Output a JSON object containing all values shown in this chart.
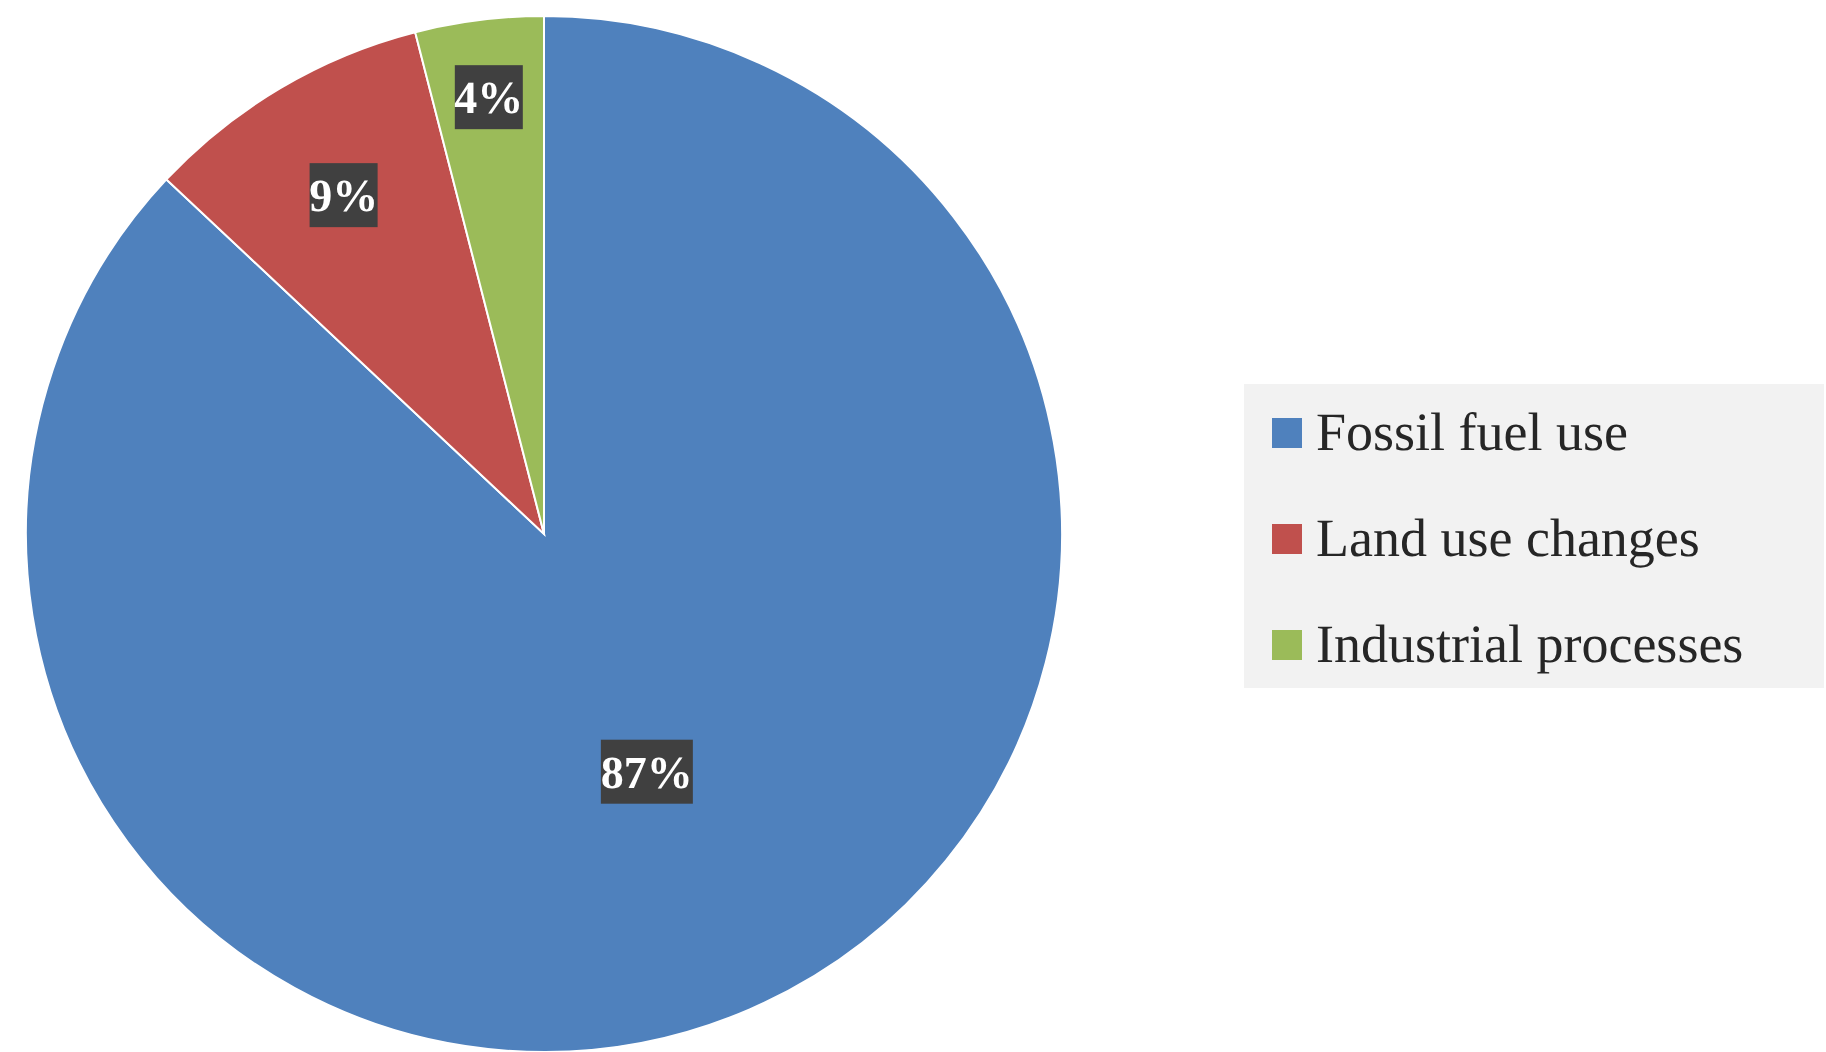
{
  "chart_data": {
    "type": "pie",
    "categories": [
      "Fossil fuel use",
      "Land use changes",
      "Industrial processes"
    ],
    "values": [
      87,
      9,
      4
    ],
    "value_labels": [
      "87%",
      "9%",
      "4%"
    ],
    "colors": [
      "#4f81bd",
      "#c0504d",
      "#9bbb59"
    ],
    "legend": "right"
  }
}
